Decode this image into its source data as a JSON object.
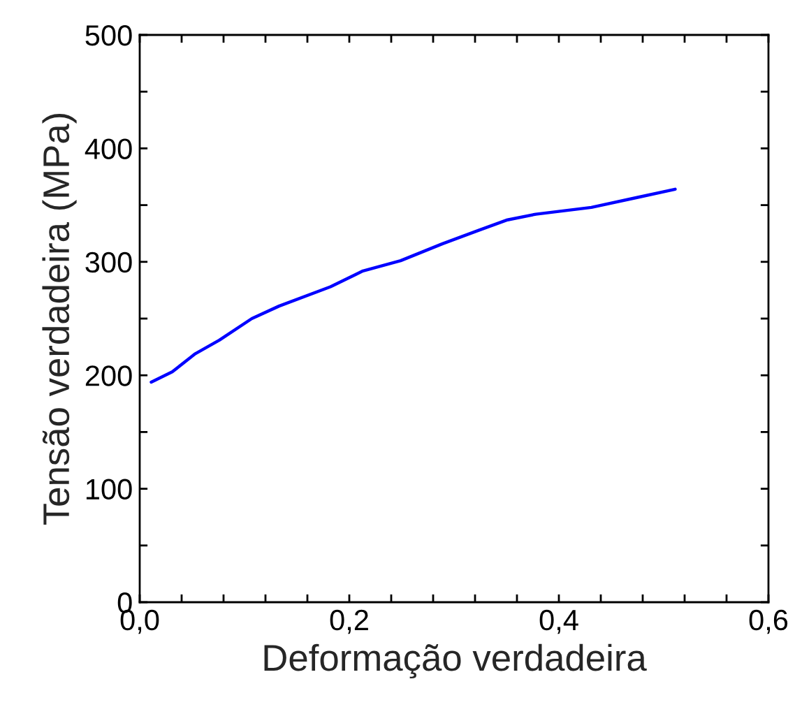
{
  "chart_data": {
    "type": "line",
    "xlabel": "Deformação verdadeira",
    "ylabel": "Tensão verdadeira (MPa)",
    "x": [
      0.011,
      0.031,
      0.053,
      0.076,
      0.107,
      0.133,
      0.182,
      0.213,
      0.249,
      0.289,
      0.324,
      0.351,
      0.378,
      0.431,
      0.476,
      0.511
    ],
    "series": [
      {
        "color": "#0000ff",
        "values": [
          194,
          203,
          219,
          231,
          250,
          261,
          278,
          292,
          301,
          316,
          328,
          337,
          342,
          348,
          357,
          364
        ]
      }
    ],
    "xlim": [
      0,
      0.6
    ],
    "ylim": [
      0,
      500
    ],
    "xticks": [
      {
        "value": 0,
        "label": "0,0"
      },
      {
        "value": 0.04,
        "label": null
      },
      {
        "value": 0.08,
        "label": null
      },
      {
        "value": 0.12,
        "label": null
      },
      {
        "value": 0.16,
        "label": null
      },
      {
        "value": 0.2,
        "label": "0,2"
      },
      {
        "value": 0.24,
        "label": null
      },
      {
        "value": 0.28,
        "label": null
      },
      {
        "value": 0.32,
        "label": null
      },
      {
        "value": 0.36,
        "label": null
      },
      {
        "value": 0.4,
        "label": "0,4"
      },
      {
        "value": 0.44,
        "label": null
      },
      {
        "value": 0.48,
        "label": null
      },
      {
        "value": 0.52,
        "label": null
      },
      {
        "value": 0.56,
        "label": null
      },
      {
        "value": 0.6,
        "label": "0,6"
      }
    ],
    "yticks": [
      0,
      {
        "value": 50,
        "label": null
      },
      100,
      {
        "value": 150,
        "label": null
      },
      200,
      {
        "value": 250,
        "label": null
      },
      300,
      {
        "value": 350,
        "label": null
      },
      400,
      {
        "value": 450,
        "label": null
      },
      500
    ],
    "grid": false,
    "legend": false,
    "marker": "none",
    "line_style": "solid"
  }
}
